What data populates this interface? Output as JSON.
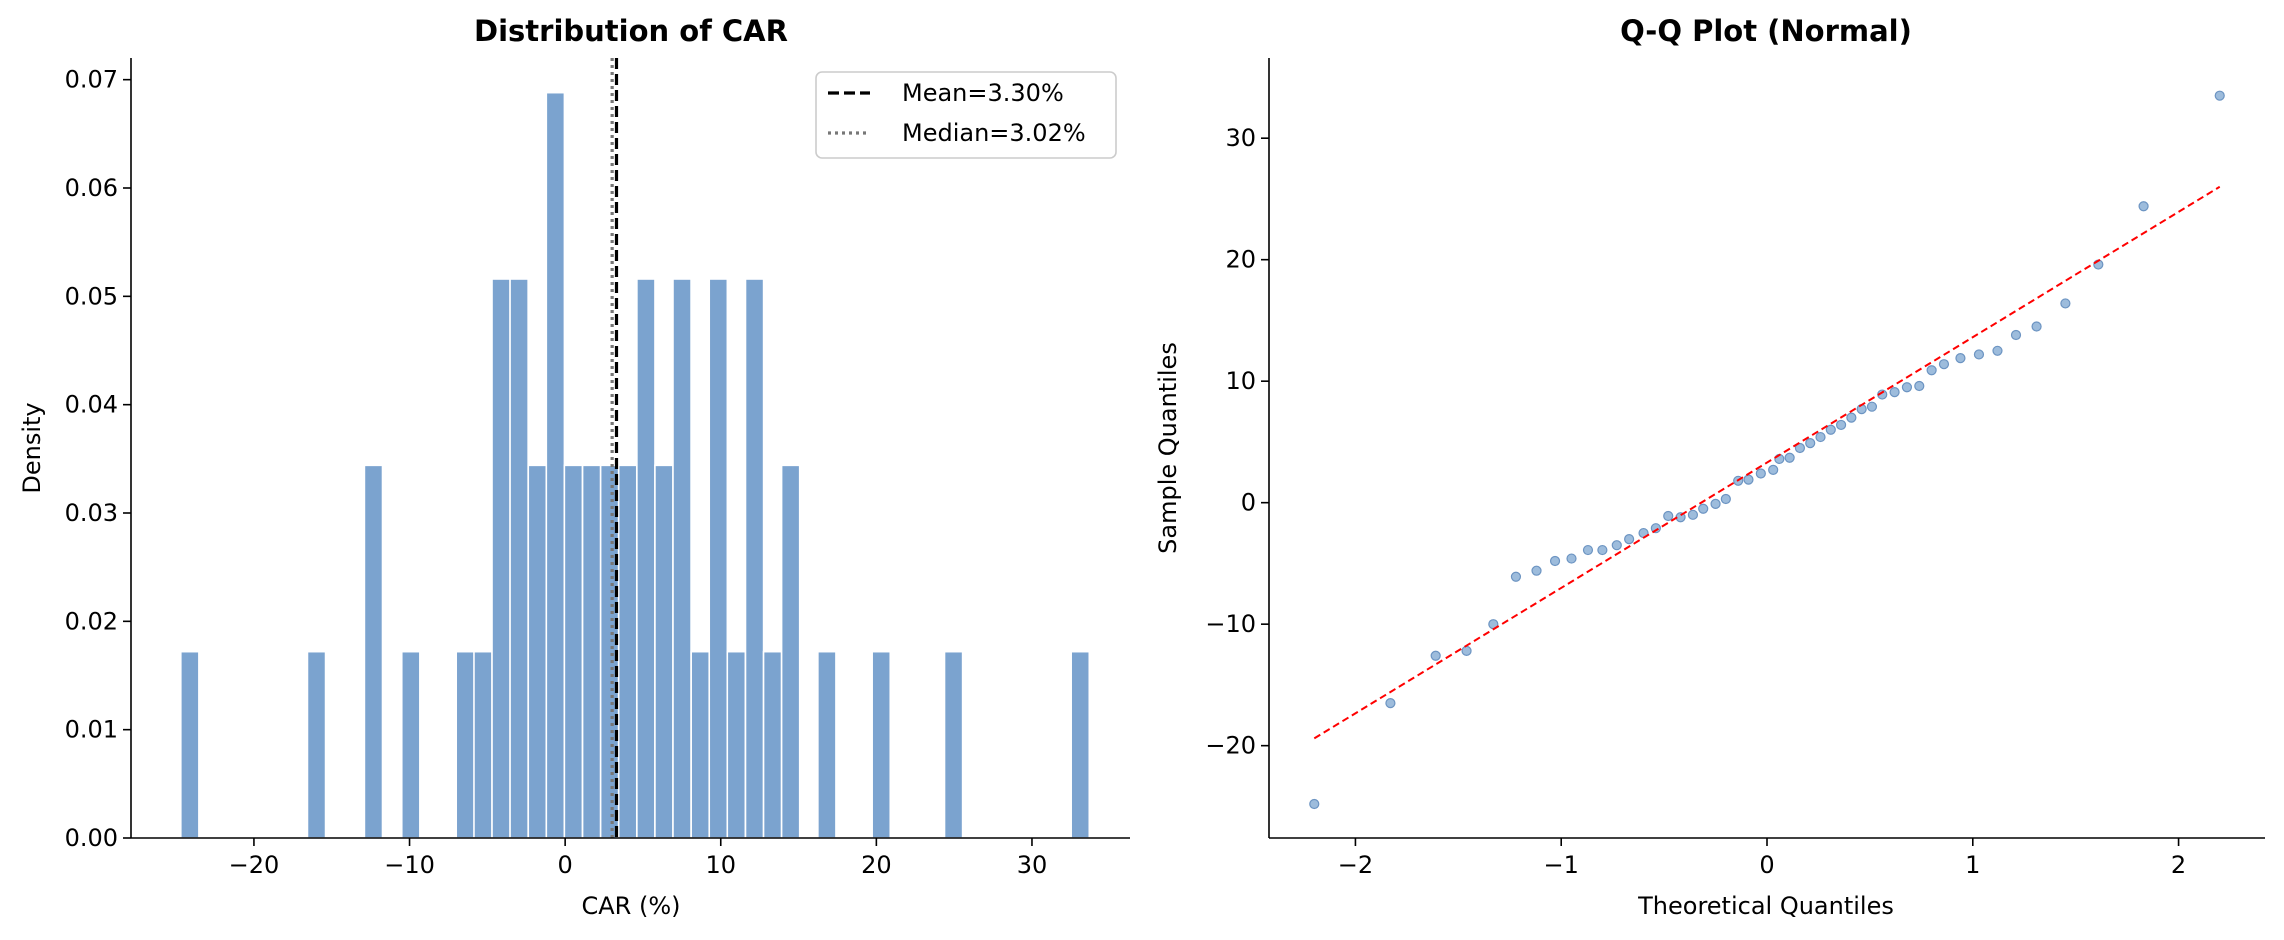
{
  "colors": {
    "bar_fill": "#7ba3cf",
    "bar_edge": "#ffffff",
    "mean_line": "#000000",
    "median_line": "#777777",
    "point_fill": "#8cb0d6",
    "point_edge": "#6c94c2",
    "ref_line": "#ff0000"
  },
  "chart_data": [
    {
      "type": "histogram",
      "title": "Distribution of CAR",
      "xlabel": "CAR (%)",
      "ylabel": "Density",
      "xlim": [
        -27.9,
        36.3
      ],
      "ylim": [
        0,
        0.072
      ],
      "xticks": [
        -20,
        -10,
        0,
        10,
        20,
        30
      ],
      "yticks": [
        0.0,
        0.01,
        0.02,
        0.03,
        0.04,
        0.05,
        0.06,
        0.07
      ],
      "xtick_labels": [
        "−20",
        "−10",
        "0",
        "10",
        "20",
        "30"
      ],
      "ytick_labels": [
        "0.00",
        "0.01",
        "0.02",
        "0.03",
        "0.04",
        "0.05",
        "0.06",
        "0.07"
      ],
      "bin_width": 1.163,
      "bins_left": [
        -24.7,
        -16.56,
        -12.9,
        -10.5,
        -7.0,
        -5.86,
        -4.7,
        -3.54,
        -2.37,
        -1.21,
        -0.05,
        1.12,
        2.28,
        3.44,
        4.61,
        5.77,
        6.93,
        8.1,
        9.26,
        10.42,
        11.59,
        12.75,
        13.91,
        16.24,
        19.73,
        24.38,
        32.52
      ],
      "density": [
        0.0172,
        0.0172,
        0.0344,
        0.0172,
        0.0172,
        0.0172,
        0.0516,
        0.0516,
        0.0344,
        0.0688,
        0.0344,
        0.0344,
        0.0344,
        0.0344,
        0.0516,
        0.0344,
        0.0516,
        0.0172,
        0.0516,
        0.0172,
        0.0516,
        0.0172,
        0.0344,
        0.0172,
        0.0172,
        0.0172,
        0.0172
      ],
      "mean": 3.3,
      "median": 3.02,
      "legend": [
        "Mean=3.30%",
        "Median=3.02%"
      ],
      "legend_position": "upper right"
    },
    {
      "type": "scatter",
      "title": "Q-Q Plot (Normal)",
      "xlabel": "Theoretical Quantiles",
      "ylabel": "Sample Quantiles",
      "xlim": [
        -2.42,
        2.42
      ],
      "ylim": [
        -27.6,
        36.6
      ],
      "xticks": [
        -2,
        -1,
        0,
        1,
        2
      ],
      "yticks": [
        -20,
        -10,
        0,
        10,
        20,
        30
      ],
      "xtick_labels": [
        "−2",
        "−1",
        "0",
        "1",
        "2"
      ],
      "ytick_labels": [
        "−20",
        "−10",
        "0",
        "10",
        "20",
        "30"
      ],
      "ref_line": {
        "x": [
          -2.2,
          2.2
        ],
        "y": [
          -19.4,
          26.0
        ]
      },
      "points": [
        [
          -2.2,
          -24.8
        ],
        [
          -1.83,
          -16.5
        ],
        [
          -1.61,
          -12.6
        ],
        [
          -1.46,
          -12.2
        ],
        [
          -1.33,
          -10.0
        ],
        [
          -1.22,
          -6.1
        ],
        [
          -1.12,
          -5.6
        ],
        [
          -1.03,
          -4.8
        ],
        [
          -0.95,
          -4.6
        ],
        [
          -0.87,
          -3.9
        ],
        [
          -0.8,
          -3.9
        ],
        [
          -0.73,
          -3.5
        ],
        [
          -0.67,
          -3.0
        ],
        [
          -0.6,
          -2.5
        ],
        [
          -0.54,
          -2.1
        ],
        [
          -0.48,
          -1.1
        ],
        [
          -0.42,
          -1.2
        ],
        [
          -0.36,
          -1.0
        ],
        [
          -0.31,
          -0.5
        ],
        [
          -0.25,
          -0.1
        ],
        [
          -0.2,
          0.3
        ],
        [
          -0.14,
          1.8
        ],
        [
          -0.09,
          1.9
        ],
        [
          -0.03,
          2.4
        ],
        [
          0.03,
          2.7
        ],
        [
          0.06,
          3.6
        ],
        [
          0.11,
          3.7
        ],
        [
          0.16,
          4.5
        ],
        [
          0.21,
          4.9
        ],
        [
          0.26,
          5.4
        ],
        [
          0.31,
          6.0
        ],
        [
          0.36,
          6.4
        ],
        [
          0.41,
          7.0
        ],
        [
          0.46,
          7.7
        ],
        [
          0.51,
          7.9
        ],
        [
          0.56,
          8.9
        ],
        [
          0.62,
          9.1
        ],
        [
          0.68,
          9.5
        ],
        [
          0.74,
          9.6
        ],
        [
          0.8,
          10.9
        ],
        [
          0.86,
          11.4
        ],
        [
          0.94,
          11.9
        ],
        [
          1.03,
          12.2
        ],
        [
          1.12,
          12.5
        ],
        [
          1.21,
          13.8
        ],
        [
          1.31,
          14.5
        ],
        [
          1.45,
          16.4
        ],
        [
          1.61,
          19.6
        ],
        [
          1.83,
          24.4
        ],
        [
          2.2,
          33.5
        ]
      ]
    }
  ]
}
